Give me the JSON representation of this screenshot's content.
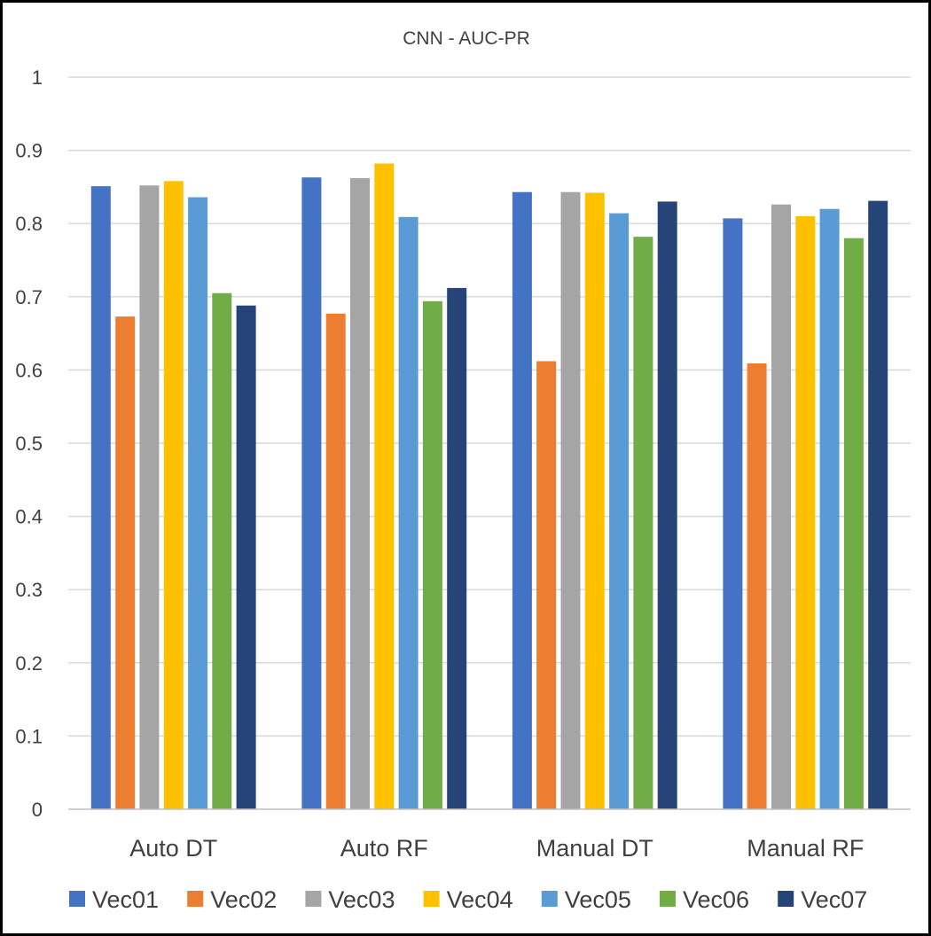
{
  "chart_data": {
    "type": "bar",
    "title": "CNN - AUC-PR",
    "xlabel": "",
    "ylabel": "",
    "ylim": [
      0,
      1
    ],
    "yticks": [
      "0",
      "0.1",
      "0.2",
      "0.3",
      "0.4",
      "0.5",
      "0.6",
      "0.7",
      "0.8",
      "0.9",
      "1"
    ],
    "grid": true,
    "legend_position": "bottom",
    "categories": [
      "Auto DT",
      "Auto RF",
      "Manual DT",
      "Manual RF"
    ],
    "series": [
      {
        "name": "Vec01",
        "color": "#4472C4",
        "values": [
          0.851,
          0.863,
          0.843,
          0.807
        ]
      },
      {
        "name": "Vec02",
        "color": "#ED7D31",
        "values": [
          0.673,
          0.677,
          0.612,
          0.609
        ]
      },
      {
        "name": "Vec03",
        "color": "#A5A5A5",
        "values": [
          0.852,
          0.862,
          0.843,
          0.826
        ]
      },
      {
        "name": "Vec04",
        "color": "#FFC000",
        "values": [
          0.858,
          0.882,
          0.842,
          0.81
        ]
      },
      {
        "name": "Vec05",
        "color": "#5B9BD5",
        "values": [
          0.836,
          0.809,
          0.814,
          0.82
        ]
      },
      {
        "name": "Vec06",
        "color": "#70AD47",
        "values": [
          0.705,
          0.694,
          0.782,
          0.78
        ]
      },
      {
        "name": "Vec07",
        "color": "#264478",
        "values": [
          0.688,
          0.712,
          0.83,
          0.831
        ]
      }
    ]
  }
}
